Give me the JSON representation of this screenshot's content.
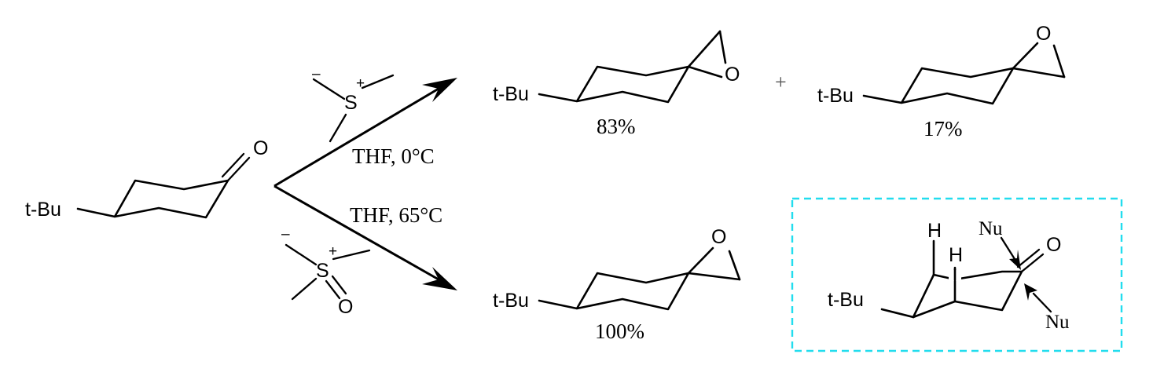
{
  "reactant": {
    "substituent": "t-Bu",
    "carbonyl_o": "O"
  },
  "reagent_top": {
    "sulfur": "S",
    "charge_minus": "–",
    "charge_plus": "+"
  },
  "reagent_bottom": {
    "sulfur": "S",
    "charge_minus": "–",
    "charge_plus": "+",
    "oxygen": "O"
  },
  "conditions": {
    "top": "THF, 0°C",
    "bottom": "THF, 65°C"
  },
  "plus_sign": "+",
  "product_axial": {
    "substituent": "t-Bu",
    "oxygen": "O",
    "yield": "83%"
  },
  "product_equatorial": {
    "substituent": "t-Bu",
    "oxygen": "O",
    "yield": "17%"
  },
  "product_bottom": {
    "substituent": "t-Bu",
    "oxygen": "O",
    "yield": "100%"
  },
  "inset": {
    "substituent": "t-Bu",
    "carbonyl_o": "O",
    "axial_h_1": "H",
    "axial_h_2": "H",
    "nucleophile_axial": "Nu",
    "nucleophile_equatorial": "Nu",
    "border_color": "#22ddee"
  }
}
